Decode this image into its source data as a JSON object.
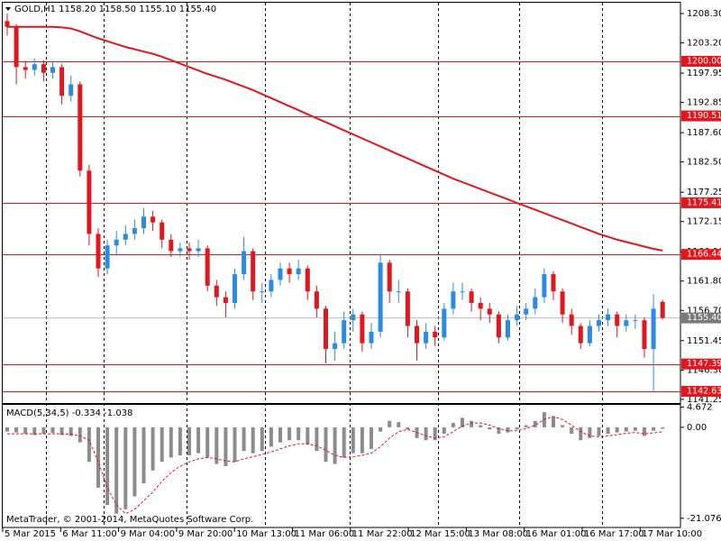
{
  "chart_data": [
    {
      "type": "candlestick",
      "title": "GOLD,H1  1158.20 1158.50 1155.10 1155.40",
      "up_color": "#2a8be6",
      "down_color": "#e3161e",
      "ylim": [
        1140.6,
        1210.66
      ],
      "yticks": [
        {
          "value": 1208.3,
          "label": "1208.30"
        },
        {
          "value": 1203.2,
          "label": "1203.20"
        },
        {
          "value": 1197.95,
          "label": "1197.95"
        },
        {
          "value": 1192.85,
          "label": "1192.85"
        },
        {
          "value": 1187.6,
          "label": "1187.60"
        },
        {
          "value": 1182.5,
          "label": "1182.50"
        },
        {
          "value": 1177.25,
          "label": "1177.25"
        },
        {
          "value": 1172.15,
          "label": "1172.15"
        },
        {
          "value": 1166.9,
          "label": "1166.90"
        },
        {
          "value": 1161.8,
          "label": "1161.80"
        },
        {
          "value": 1156.7,
          "label": "1156.70"
        },
        {
          "value": 1151.45,
          "label": "1151.45"
        },
        {
          "value": 1146.3,
          "label": "1146.30"
        },
        {
          "value": 1141.25,
          "label": "1141.25"
        }
      ],
      "time_labels": [
        "5 Mar 2015",
        "6 Mar 11:00",
        "9 Mar 04:00",
        "9 Mar 20:00",
        "10 Mar 13:00",
        "11 Mar 06:00",
        "11 Mar 22:00",
        "12 Mar 15:00",
        "13 Mar 08:00",
        "16 Mar 01:00",
        "16 Mar 17:00",
        "17 Mar 10:00"
      ],
      "levels_color": "#e3161e",
      "levels": [
        {
          "value": 1200,
          "label": "1200.00"
        },
        {
          "value": 1190.51,
          "label": "1190.51"
        },
        {
          "value": 1175.41,
          "label": "1175.41"
        },
        {
          "value": 1166.44,
          "label": "1166.44"
        },
        {
          "value": 1147.39,
          "label": "1147.39"
        },
        {
          "value": 1142.63,
          "label": "1142.63"
        }
      ],
      "price": {
        "value": 1155.4,
        "label": "1155.40",
        "color": "#7a7a7a"
      },
      "open": [
        1207,
        1206,
        1199,
        1198.5,
        1199.5,
        1198,
        1199,
        1194,
        1196,
        1181,
        1170,
        1164,
        1168,
        1169,
        1170,
        1171,
        1173,
        1172,
        1169,
        1167,
        1167.5,
        1167,
        1167.5,
        1161,
        1159,
        1158,
        1163,
        1167,
        1160,
        1160,
        1162,
        1164,
        1163,
        1164,
        1160,
        1157,
        1150,
        1151,
        1155,
        1156,
        1151,
        1153,
        1165,
        1160,
        1160,
        1154,
        1151,
        1153,
        1152,
        1157,
        1160,
        1160,
        1158,
        1157,
        1156,
        1152,
        1155,
        1156,
        1157,
        1159,
        1163,
        1160,
        1156,
        1154,
        1151,
        1154,
        1155,
        1156,
        1154,
        1155,
        1155,
        1150,
        1158.2
      ],
      "high": [
        1208.3,
        1206.5,
        1200,
        1200.5,
        1200.2,
        1200,
        1199.5,
        1197.5,
        1196.5,
        1182,
        1171,
        1169,
        1170.5,
        1171.5,
        1172.5,
        1174.5,
        1174,
        1172.5,
        1170,
        1168.5,
        1168.5,
        1169,
        1168,
        1162,
        1160,
        1164,
        1169.5,
        1167.5,
        1161.5,
        1163,
        1165,
        1165,
        1165.5,
        1164.5,
        1161,
        1157.5,
        1153,
        1156.5,
        1157,
        1156.5,
        1154.5,
        1166.5,
        1165.5,
        1162,
        1160.5,
        1155,
        1154.5,
        1154,
        1158,
        1161.5,
        1161.5,
        1160.5,
        1159,
        1158,
        1156.5,
        1156,
        1157.5,
        1158,
        1160.5,
        1164,
        1163.5,
        1160.5,
        1157,
        1154.5,
        1155,
        1156,
        1157,
        1156.5,
        1156,
        1156,
        1155.5,
        1159.5,
        1158.5
      ],
      "low": [
        1204.5,
        1196,
        1197,
        1197.5,
        1196.5,
        1197,
        1192.5,
        1193,
        1180,
        1168,
        1162.5,
        1163,
        1166.5,
        1168,
        1169,
        1170,
        1170.5,
        1167.5,
        1166,
        1166,
        1165.5,
        1166,
        1160,
        1157.5,
        1155.5,
        1157,
        1162,
        1158.5,
        1158,
        1159,
        1161,
        1161.5,
        1162,
        1158.5,
        1155.5,
        1147.5,
        1148,
        1150,
        1153,
        1149.5,
        1150,
        1152,
        1158,
        1158,
        1152,
        1148,
        1150,
        1150.5,
        1151.5,
        1156,
        1158.5,
        1156.5,
        1155,
        1154.5,
        1151,
        1151.5,
        1154,
        1155,
        1156,
        1158,
        1158.5,
        1154.5,
        1152.5,
        1150,
        1150.5,
        1153,
        1154,
        1152,
        1153,
        1153.5,
        1148.5,
        1142.7,
        1155.1
      ],
      "close": [
        1206,
        1199,
        1198.5,
        1199.5,
        1198,
        1199,
        1194,
        1196,
        1181,
        1170,
        1164,
        1168,
        1169,
        1170,
        1171,
        1173,
        1172,
        1169,
        1167,
        1167.5,
        1167,
        1167.5,
        1161,
        1159,
        1158,
        1163,
        1167,
        1160,
        1160,
        1162,
        1164,
        1163,
        1164,
        1160,
        1157,
        1150,
        1151,
        1155,
        1156,
        1151,
        1153,
        1165,
        1160,
        1160,
        1154,
        1151,
        1153,
        1152,
        1157,
        1160,
        1160,
        1158,
        1157,
        1156,
        1152,
        1155,
        1156,
        1157,
        1159,
        1163,
        1160,
        1156,
        1154,
        1151,
        1154,
        1155,
        1156,
        1154,
        1155,
        1155,
        1150,
        1157,
        1155.4
      ],
      "ma": {
        "color": "#e3161e",
        "values": [
          1206,
          1206,
          1206,
          1206,
          1206,
          1206,
          1205.9,
          1205.7,
          1205.2,
          1204.6,
          1204,
          1203.5,
          1203,
          1202.5,
          1202.1,
          1201.7,
          1201.3,
          1200.8,
          1200.2,
          1199.6,
          1199,
          1198.4,
          1197.8,
          1197.3,
          1196.8,
          1196.2,
          1195.6,
          1195,
          1194.3,
          1193.6,
          1192.9,
          1192.2,
          1191.5,
          1190.8,
          1190.1,
          1189.4,
          1188.7,
          1188,
          1187.3,
          1186.6,
          1185.9,
          1185.2,
          1184.5,
          1183.8,
          1183.1,
          1182.4,
          1181.7,
          1181,
          1180.3,
          1179.6,
          1179,
          1178.4,
          1177.8,
          1177.2,
          1176.6,
          1176,
          1175.4,
          1174.8,
          1174.2,
          1173.6,
          1173,
          1172.4,
          1171.8,
          1171.2,
          1170.6,
          1170,
          1169.5,
          1169,
          1168.6,
          1168.2,
          1167.8,
          1167.4,
          1167.1
        ]
      }
    },
    {
      "type": "macd",
      "title": "MACD(5,34,5) -0.334 -1.038",
      "ylim": [
        -23.2,
        5.2
      ],
      "yticks": [
        4.672,
        {
          "value": 0,
          "label": "0.00"
        },
        -21.076
      ],
      "histogram": {
        "color": "#8c8c8c",
        "values": [
          -1,
          -1.2,
          -1.5,
          -1.8,
          -1.5,
          -1.3,
          -1.8,
          -2,
          -3.5,
          -8,
          -14,
          -18,
          -20,
          -19,
          -16,
          -13,
          -10,
          -8,
          -7,
          -6.5,
          -6.5,
          -6,
          -7,
          -8.5,
          -9,
          -8,
          -5.5,
          -6,
          -5.5,
          -4.5,
          -3.5,
          -3,
          -3,
          -4,
          -5.5,
          -8,
          -8.5,
          -7,
          -6,
          -6,
          -5,
          -1,
          1.5,
          1.2,
          -0.5,
          -2.5,
          -3,
          -3,
          -1.5,
          1,
          2.2,
          1.5,
          0.5,
          -0.5,
          -1.5,
          -1.2,
          -0.5,
          0.5,
          1.5,
          3.5,
          2.5,
          0.5,
          -1.5,
          -3,
          -2.5,
          -2,
          -1.5,
          -1.2,
          -1,
          -0.8,
          -2,
          -0.8,
          -0.334
        ]
      },
      "signal": {
        "color": "#e3161e",
        "values": [
          -1.5,
          -1.5,
          -1.5,
          -1.5,
          -1.5,
          -1.5,
          -1.5,
          -1.6,
          -2,
          -3,
          -8,
          -14,
          -18,
          -20,
          -19,
          -17,
          -15,
          -12.5,
          -10.5,
          -9,
          -8,
          -7.3,
          -7,
          -7.3,
          -7.8,
          -8,
          -7.3,
          -6.8,
          -6.3,
          -5.7,
          -5,
          -4.3,
          -3.8,
          -3.8,
          -4.3,
          -5.3,
          -6.5,
          -7,
          -6.8,
          -6.5,
          -6,
          -4.5,
          -2.5,
          -1,
          -0.5,
          -1.2,
          -2,
          -2.5,
          -2.2,
          -1,
          0.3,
          1,
          1,
          0.5,
          -0.3,
          -0.8,
          -0.8,
          -0.3,
          0.5,
          1.8,
          2.5,
          1.8,
          0.5,
          -1,
          -2,
          -2.2,
          -2,
          -1.7,
          -1.4,
          -1.2,
          -1.5,
          -1.3,
          -1.038
        ]
      },
      "watermark": "MetaTrader, © 2001-2014, MetaQuotes Software Corp."
    }
  ]
}
